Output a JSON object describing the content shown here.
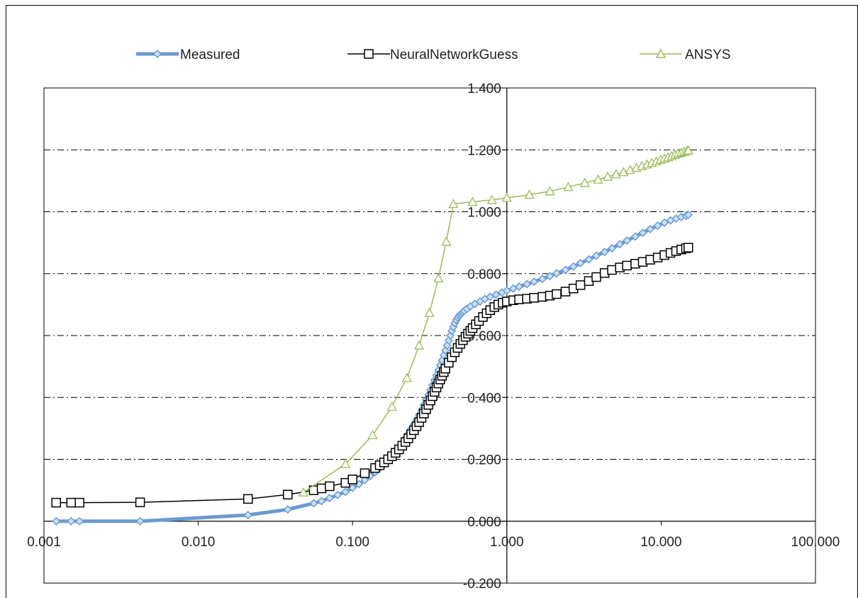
{
  "chart_data": {
    "type": "scatter",
    "title": "",
    "xlabel": "",
    "ylabel": "",
    "x_scale": "log",
    "xlim": [
      0.001,
      100
    ],
    "ylim": [
      -0.2,
      1.4
    ],
    "x_tick_labels": [
      "0.001",
      "0.010",
      "0.100",
      "1.000",
      "10.000",
      "100.000"
    ],
    "y_tick_labels": [
      "-0.200",
      "0.000",
      "0.200",
      "0.400",
      "0.600",
      "0.800",
      "1.000",
      "1.200",
      "1.400"
    ],
    "grid": "horizontal dash-dot",
    "legend_position": "top",
    "series": [
      {
        "name": "Measured",
        "color": "#6a9bd1",
        "marker": "diamond",
        "x": [
          0.0012,
          0.0015,
          0.0017,
          0.0042,
          0.021,
          0.038,
          0.056,
          0.063,
          0.071,
          0.08,
          0.09,
          0.1,
          0.11,
          0.12,
          0.13,
          0.14,
          0.15,
          0.16,
          0.17,
          0.18,
          0.19,
          0.2,
          0.21,
          0.22,
          0.23,
          0.24,
          0.25,
          0.26,
          0.27,
          0.28,
          0.29,
          0.3,
          0.31,
          0.32,
          0.33,
          0.34,
          0.35,
          0.36,
          0.37,
          0.38,
          0.39,
          0.4,
          0.41,
          0.42,
          0.43,
          0.44,
          0.45,
          0.46,
          0.47,
          0.48,
          0.49,
          0.5,
          0.51,
          0.52,
          0.53,
          0.55,
          0.58,
          0.62,
          0.67,
          0.72,
          0.78,
          0.85,
          0.93,
          1.0,
          1.1,
          1.2,
          1.35,
          1.5,
          1.7,
          1.9,
          2.1,
          2.4,
          2.7,
          3.0,
          3.4,
          3.8,
          4.3,
          4.8,
          5.4,
          6.0,
          6.8,
          7.6,
          8.5,
          9.5,
          10.5,
          11.5,
          12.5,
          13.5,
          14.5,
          15.0
        ],
        "y": [
          0.0,
          0.0,
          0.0,
          0.0,
          0.02,
          0.038,
          0.058,
          0.065,
          0.075,
          0.085,
          0.095,
          0.108,
          0.12,
          0.133,
          0.146,
          0.158,
          0.171,
          0.184,
          0.197,
          0.211,
          0.225,
          0.239,
          0.253,
          0.268,
          0.283,
          0.298,
          0.313,
          0.328,
          0.344,
          0.36,
          0.376,
          0.392,
          0.408,
          0.424,
          0.44,
          0.456,
          0.472,
          0.488,
          0.504,
          0.52,
          0.536,
          0.552,
          0.568,
          0.584,
          0.6,
          0.615,
          0.628,
          0.64,
          0.65,
          0.658,
          0.664,
          0.668,
          0.672,
          0.676,
          0.68,
          0.686,
          0.694,
          0.702,
          0.71,
          0.718,
          0.725,
          0.732,
          0.739,
          0.745,
          0.752,
          0.758,
          0.766,
          0.774,
          0.783,
          0.792,
          0.801,
          0.812,
          0.823,
          0.834,
          0.846,
          0.858,
          0.87,
          0.882,
          0.895,
          0.907,
          0.92,
          0.932,
          0.944,
          0.955,
          0.965,
          0.972,
          0.978,
          0.983,
          0.987,
          0.99
        ]
      },
      {
        "name": "NeuralNetworkGuess",
        "color": "#000000",
        "marker": "square",
        "x": [
          0.0012,
          0.0015,
          0.0017,
          0.0042,
          0.021,
          0.038,
          0.056,
          0.063,
          0.071,
          0.09,
          0.1,
          0.12,
          0.14,
          0.15,
          0.16,
          0.17,
          0.18,
          0.19,
          0.2,
          0.21,
          0.22,
          0.23,
          0.24,
          0.25,
          0.26,
          0.27,
          0.28,
          0.29,
          0.3,
          0.31,
          0.32,
          0.33,
          0.34,
          0.35,
          0.36,
          0.37,
          0.38,
          0.39,
          0.4,
          0.42,
          0.44,
          0.46,
          0.48,
          0.5,
          0.52,
          0.54,
          0.56,
          0.58,
          0.6,
          0.63,
          0.66,
          0.7,
          0.74,
          0.78,
          0.83,
          0.88,
          0.94,
          1.0,
          1.1,
          1.2,
          1.35,
          1.5,
          1.7,
          1.9,
          2.1,
          2.4,
          2.7,
          3.0,
          3.4,
          3.8,
          4.3,
          4.8,
          5.4,
          6.0,
          6.8,
          7.6,
          8.5,
          9.5,
          10.5,
          11.5,
          12.5,
          13.5,
          14.5,
          15.0
        ],
        "y": [
          0.06,
          0.06,
          0.06,
          0.061,
          0.072,
          0.086,
          0.1,
          0.106,
          0.113,
          0.124,
          0.135,
          0.155,
          0.172,
          0.181,
          0.19,
          0.2,
          0.21,
          0.221,
          0.232,
          0.244,
          0.256,
          0.268,
          0.281,
          0.294,
          0.307,
          0.32,
          0.334,
          0.348,
          0.362,
          0.376,
          0.39,
          0.404,
          0.418,
          0.432,
          0.445,
          0.458,
          0.47,
          0.482,
          0.493,
          0.512,
          0.53,
          0.546,
          0.56,
          0.573,
          0.585,
          0.596,
          0.606,
          0.615,
          0.624,
          0.636,
          0.647,
          0.66,
          0.672,
          0.682,
          0.692,
          0.7,
          0.706,
          0.71,
          0.714,
          0.717,
          0.719,
          0.722,
          0.725,
          0.729,
          0.734,
          0.742,
          0.752,
          0.763,
          0.776,
          0.789,
          0.802,
          0.812,
          0.82,
          0.826,
          0.832,
          0.838,
          0.845,
          0.852,
          0.86,
          0.867,
          0.873,
          0.878,
          0.882,
          0.884
        ]
      },
      {
        "name": "ANSYS",
        "color": "#9bbb59",
        "marker": "triangle",
        "x": [
          0.048,
          0.09,
          0.135,
          0.18,
          0.225,
          0.27,
          0.315,
          0.36,
          0.405,
          0.45,
          0.6,
          0.8,
          1.0,
          1.4,
          1.9,
          2.5,
          3.2,
          3.9,
          4.5,
          5.1,
          5.7,
          6.3,
          6.9,
          7.5,
          8.1,
          8.7,
          9.3,
          9.9,
          10.5,
          11.1,
          11.7,
          12.3,
          12.9,
          13.5,
          14.1,
          14.7,
          15.0
        ],
        "y": [
          0.093,
          0.185,
          0.278,
          0.37,
          0.463,
          0.568,
          0.673,
          0.785,
          0.903,
          1.025,
          1.032,
          1.038,
          1.045,
          1.055,
          1.066,
          1.08,
          1.093,
          1.104,
          1.113,
          1.121,
          1.128,
          1.135,
          1.142,
          1.148,
          1.153,
          1.158,
          1.163,
          1.168,
          1.172,
          1.176,
          1.18,
          1.184,
          1.188,
          1.191,
          1.194,
          1.197,
          1.198
        ]
      }
    ]
  }
}
